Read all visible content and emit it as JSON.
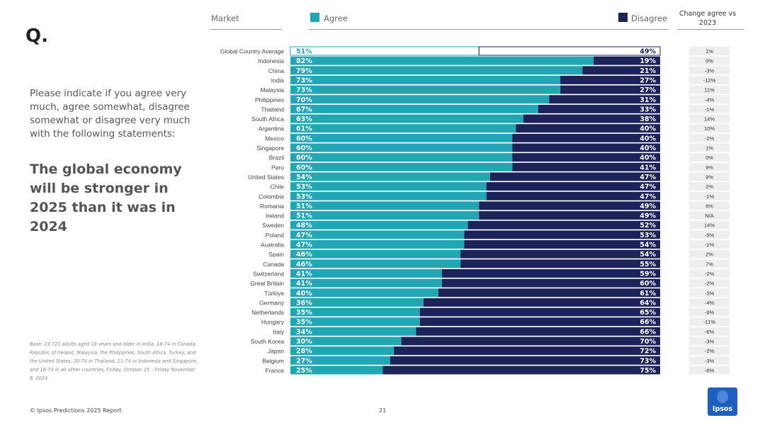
{
  "header": {
    "q_label": "Q.",
    "market_label": "Market",
    "agree_label": "Agree",
    "disagree_label": "Disagree",
    "change_label": "Change agree vs 2023"
  },
  "question": "Please indicate if you agree very much, agree somewhat, disagree somewhat or disagree very much with the following statements:",
  "statement": "The global economy will be stronger in 2025 than it was in 2024",
  "base_note": "Base: 23,721 adults aged 18 years and older in India, 18-74 in Canada, Republic of Ireland, Malaysia, the Philippines, South Africa, Turkey, and the United States, 20-74 in Thailand, 21-74 in Indonesia and Singapore, and 16-74 in all other countries, Friday, October 25 – Friday November 8, 2024",
  "footer": {
    "source": "© Ipsos Predictions 2025 Report",
    "page": "21"
  },
  "logo": {
    "text": "Ipsos"
  },
  "colors": {
    "agree": "#23a6b3",
    "disagree": "#1b2358",
    "change_bg": "#eeeeee"
  },
  "chart_data": {
    "type": "bar",
    "orientation": "horizontal-stacked",
    "title": "The global economy will be stronger in 2025 than it was in 2024",
    "categories": [
      "Global Country Average",
      "Indonesia",
      "China",
      "India",
      "Malaysia",
      "Philippines",
      "Thailand",
      "South Africa",
      "Argentina",
      "Mexico",
      "Singapore",
      "Brazil",
      "Peru",
      "United States",
      "Chile",
      "Colombia",
      "Romania",
      "Ireland",
      "Sweden",
      "Poland",
      "Australia",
      "Spain",
      "Canada",
      "Switzerland",
      "Great Britain",
      "Türkiye",
      "Germany",
      "Netherlands",
      "Hungary",
      "Italy",
      "South Korea",
      "Japan",
      "Belgium",
      "France"
    ],
    "series": [
      {
        "name": "Agree",
        "values": [
          51,
          82,
          79,
          73,
          73,
          70,
          67,
          63,
          61,
          60,
          60,
          60,
          60,
          54,
          53,
          53,
          51,
          51,
          48,
          47,
          47,
          46,
          46,
          41,
          41,
          40,
          36,
          35,
          35,
          34,
          30,
          28,
          27,
          25
        ]
      },
      {
        "name": "Disagree",
        "values": [
          49,
          19,
          21,
          27,
          27,
          31,
          33,
          38,
          40,
          40,
          40,
          40,
          41,
          47,
          47,
          47,
          49,
          49,
          52,
          53,
          54,
          54,
          55,
          59,
          60,
          61,
          64,
          65,
          66,
          66,
          70,
          72,
          73,
          75
        ]
      }
    ],
    "change_vs_2023": [
      "1%",
      "0%",
      "-3%",
      "-12%",
      "11%",
      "-4%",
      "-1%",
      "14%",
      "10%",
      "-2%",
      "1%",
      "0%",
      "9%",
      "9%",
      "2%",
      "-1%",
      "6%",
      "N/A",
      "14%",
      "-9%",
      "-1%",
      "2%",
      "7%",
      "-2%",
      "-2%",
      "-3%",
      "-4%",
      "-9%",
      "-11%",
      "-6%",
      "-3%",
      "-2%",
      "-3%",
      "-8%"
    ],
    "xlim": [
      0,
      100
    ]
  }
}
